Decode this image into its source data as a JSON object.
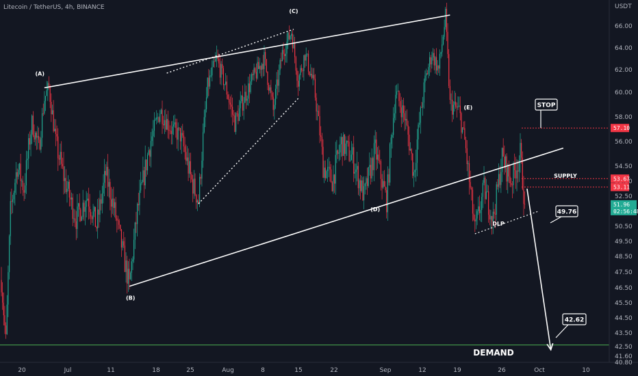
{
  "header": {
    "symbol_title": "Litecoin / TetherUS, 4h, BINANCE",
    "currency": "USDT"
  },
  "chart_data": {
    "type": "candlestick",
    "title": "Litecoin / TetherUS, 4h, BINANCE",
    "ylabel": "USDT",
    "ylim": [
      40.6,
      67.8
    ],
    "y_ticks": [
      40.8,
      41.6,
      42.5,
      43.5,
      44.5,
      45.5,
      46.5,
      47.5,
      48.5,
      49.5,
      50.5,
      51.5,
      52.5,
      53.5,
      54.5,
      56.0,
      58.0,
      60.0,
      62.0,
      64.0,
      66.0
    ],
    "y_tick_labels": [
      "40.80",
      "41.60",
      "42.50",
      "43.50",
      "44.50",
      "45.50",
      "46.50",
      "47.50",
      "48.50",
      "49.50",
      "50.50",
      "51.50",
      "52.50",
      "53.50",
      "54.50",
      "56.00",
      "58.00",
      "60.00",
      "62.00",
      "64.00",
      "66.00"
    ],
    "x_tick_labels": [
      "20",
      "Jul",
      "11",
      "18",
      "25",
      "Aug",
      "8",
      "15",
      "22",
      "Sep",
      "12",
      "19",
      "26",
      "Oct",
      "10"
    ],
    "grid": false,
    "price_path": [
      {
        "i": 0,
        "p": 47.0
      },
      {
        "i": 4,
        "p": 42.9
      },
      {
        "i": 8,
        "p": 51.5
      },
      {
        "i": 14,
        "p": 54.5
      },
      {
        "i": 20,
        "p": 53.0
      },
      {
        "i": 27,
        "p": 57.5
      },
      {
        "i": 33,
        "p": 55.5
      },
      {
        "i": 38,
        "p": 59.5
      },
      {
        "i": 42,
        "p": 60.4
      },
      {
        "i": 48,
        "p": 56.0
      },
      {
        "i": 56,
        "p": 53.5
      },
      {
        "i": 66,
        "p": 51.0
      },
      {
        "i": 76,
        "p": 52.5
      },
      {
        "i": 84,
        "p": 50.5
      },
      {
        "i": 92,
        "p": 54.0
      },
      {
        "i": 100,
        "p": 51.5
      },
      {
        "i": 108,
        "p": 48.5
      },
      {
        "i": 113,
        "p": 46.6
      },
      {
        "i": 120,
        "p": 51.5
      },
      {
        "i": 130,
        "p": 55.5
      },
      {
        "i": 140,
        "p": 58.5
      },
      {
        "i": 150,
        "p": 57.0
      },
      {
        "i": 158,
        "p": 56.5
      },
      {
        "i": 168,
        "p": 53.5
      },
      {
        "i": 174,
        "p": 52.2
      },
      {
        "i": 182,
        "p": 60.5
      },
      {
        "i": 190,
        "p": 63.0
      },
      {
        "i": 198,
        "p": 60.5
      },
      {
        "i": 206,
        "p": 57.5
      },
      {
        "i": 214,
        "p": 59.5
      },
      {
        "i": 222,
        "p": 61.2
      },
      {
        "i": 232,
        "p": 63.0
      },
      {
        "i": 240,
        "p": 58.5
      },
      {
        "i": 248,
        "p": 63.5
      },
      {
        "i": 256,
        "p": 65.5
      },
      {
        "i": 262,
        "p": 61.0
      },
      {
        "i": 268,
        "p": 63.5
      },
      {
        "i": 276,
        "p": 60.5
      },
      {
        "i": 284,
        "p": 54.5
      },
      {
        "i": 292,
        "p": 53.5
      },
      {
        "i": 300,
        "p": 56.0
      },
      {
        "i": 310,
        "p": 55.0
      },
      {
        "i": 320,
        "p": 52.5
      },
      {
        "i": 330,
        "p": 55.5
      },
      {
        "i": 340,
        "p": 52.2
      },
      {
        "i": 348,
        "p": 60.0
      },
      {
        "i": 356,
        "p": 58.0
      },
      {
        "i": 364,
        "p": 54.0
      },
      {
        "i": 374,
        "p": 61.0
      },
      {
        "i": 380,
        "p": 63.5
      },
      {
        "i": 386,
        "p": 62.0
      },
      {
        "i": 392,
        "p": 66.8
      },
      {
        "i": 396,
        "p": 59.0
      },
      {
        "i": 404,
        "p": 58.5
      },
      {
        "i": 410,
        "p": 55.5
      },
      {
        "i": 418,
        "p": 50.2
      },
      {
        "i": 426,
        "p": 53.0
      },
      {
        "i": 434,
        "p": 51.0
      },
      {
        "i": 442,
        "p": 55.0
      },
      {
        "i": 450,
        "p": 53.5
      },
      {
        "i": 458,
        "p": 55.2
      },
      {
        "i": 462,
        "p": 51.96
      }
    ],
    "annotations": {
      "channel_upper": [
        {
          "i": 38,
          "p": 60.4
        },
        {
          "i": 396,
          "p": 67.0
        }
      ],
      "channel_lower": [
        {
          "i": 113,
          "p": 46.6
        },
        {
          "i": 496,
          "p": 55.6
        }
      ],
      "dotted_upper": [
        {
          "i": 146,
          "p": 61.7
        },
        {
          "i": 258,
          "p": 65.7
        }
      ],
      "dotted_lower": [
        {
          "i": 174,
          "p": 52.0
        },
        {
          "i": 262,
          "p": 59.5
        }
      ],
      "dlp_line": [
        {
          "i": 418,
          "p": 50.0
        },
        {
          "i": 474,
          "p": 51.5
        }
      ],
      "wave_labels": [
        {
          "text": "(A)",
          "i": 34,
          "p": 61.5
        },
        {
          "text": "(B)",
          "i": 114,
          "p": 45.7
        },
        {
          "text": "(C)",
          "i": 258,
          "p": 67.2
        },
        {
          "text": "(D)",
          "i": 330,
          "p": 51.5
        },
        {
          "text": "(E)",
          "i": 412,
          "p": 58.6
        }
      ],
      "projection": [
        {
          "i": 464,
          "p": 53.0
        },
        {
          "i": 485,
          "p": 42.2
        }
      ],
      "dlp_label": "DLP",
      "supply_label": "SUPPLY",
      "demand_label": "DEMAND",
      "stop_callout": "STOP",
      "target1_callout": "49.76",
      "target2_callout": "42.62"
    },
    "levels": [
      {
        "price": 57.1,
        "label": "57.10",
        "style": "dotted",
        "color": "#f23645"
      },
      {
        "price": 53.67,
        "label": "53.67",
        "style": "dotted",
        "color": "#f23645"
      },
      {
        "price": 53.11,
        "label": "53.11",
        "style": "dotted",
        "color": "#f23645"
      },
      {
        "price": 42.62,
        "label": "",
        "style": "solid",
        "color": "#4caf50"
      }
    ],
    "current_price": {
      "price": 51.96,
      "label": "51.96",
      "countdown": "02:56:48",
      "color": "#22ab94"
    }
  },
  "colors": {
    "background": "#131722",
    "up": "#22ab94",
    "down": "#f23645",
    "axis_text": "#b2b5be",
    "annotation": "#ffffff"
  }
}
